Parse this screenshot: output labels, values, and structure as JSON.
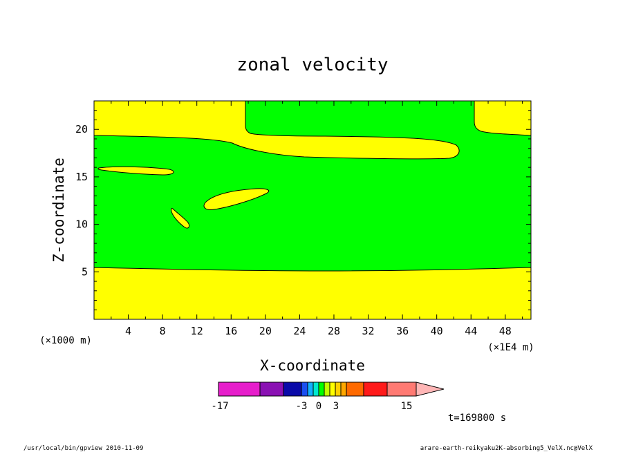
{
  "chart_data": {
    "type": "heatmap",
    "title": "zonal velocity",
    "xlabel": "X-coordinate",
    "ylabel": "Z-coordinate",
    "x_scale_label": "(×1E4 m)",
    "y_scale_label": "(×1000 m)",
    "xlim": [
      0,
      51
    ],
    "ylim": [
      0,
      23
    ],
    "x_ticks": [
      4,
      8,
      12,
      16,
      20,
      24,
      28,
      32,
      36,
      40,
      44,
      48
    ],
    "y_ticks": [
      5,
      10,
      15,
      20
    ],
    "time_label": "t=169800 s",
    "regions": [
      {
        "level": "0 to 1.5",
        "color": "#00ff00",
        "description": "interior band, z approx 5 to 19"
      },
      {
        "level": "1.5 to 3",
        "color": "#ffff00",
        "description": "bottom layer z < 5.5 and top layer z > 19"
      }
    ],
    "colorbar": {
      "tick_labels": [
        "-17",
        "-3",
        "0",
        "3",
        "15"
      ],
      "bins": [
        {
          "color": "#e61ecb"
        },
        {
          "color": "#8a11b3"
        },
        {
          "color": "#0a0aa8"
        },
        {
          "color": "#1b4ff0"
        },
        {
          "color": "#12b0ff"
        },
        {
          "color": "#00e8d0"
        },
        {
          "color": "#00ff00"
        },
        {
          "color": "#c0ff00"
        },
        {
          "color": "#ffff00"
        },
        {
          "color": "#ffd000"
        },
        {
          "color": "#ffa800"
        },
        {
          "color": "#ff6a00"
        },
        {
          "color": "#ff1a1a"
        },
        {
          "color": "#ff7a73"
        },
        {
          "color": "#ffb6b6"
        }
      ]
    }
  },
  "footer": {
    "left": "/usr/local/bin/gpview  2010-11-09",
    "right": "arare-earth-reikyaku2K-absorbing5_VelX.nc@VelX"
  }
}
